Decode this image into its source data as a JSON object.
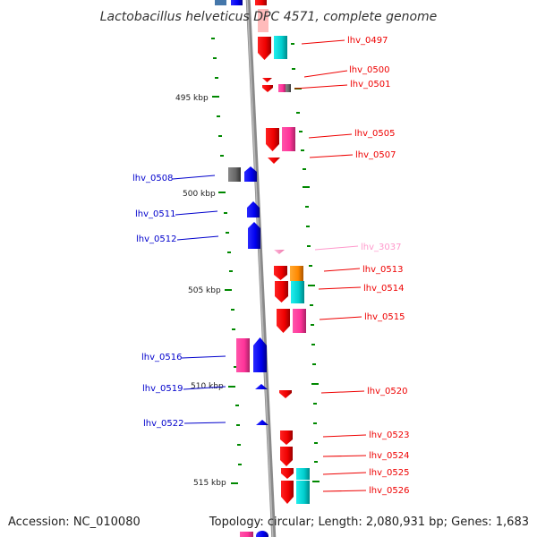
{
  "title": "Lactobacillus helveticus DPC 4571, complete genome",
  "accession": "Accession: NC_010080",
  "summary": "Topology: circular; Length: 2,080,931 bp; Genes: 1,683",
  "colors": {
    "forward": "#0000ee",
    "reverse": "#ee0000",
    "pink": "#ff3399",
    "cyan": "#00cccc",
    "orange": "#ff8800",
    "gray": "#666666",
    "light_pink": "#ff99cc",
    "backbone": "#888888",
    "tick": "#008800"
  },
  "kbp_markers": [
    "495 kbp",
    "500 kbp",
    "505 kbp",
    "510 kbp",
    "515 kbp"
  ],
  "right_labels": [
    "lhv_0497",
    "lhv_0500",
    "lhv_0501",
    "lhv_0505",
    "lhv_0507",
    "lhv_3037",
    "lhv_0513",
    "lhv_0514",
    "lhv_0515",
    "lhv_0520",
    "lhv_0523",
    "lhv_0524",
    "lhv_0525",
    "lhv_0526"
  ],
  "left_labels": [
    "lhv_0508",
    "lhv_0511",
    "lhv_0512",
    "lhv_0516",
    "lhv_0519",
    "lhv_0522"
  ]
}
